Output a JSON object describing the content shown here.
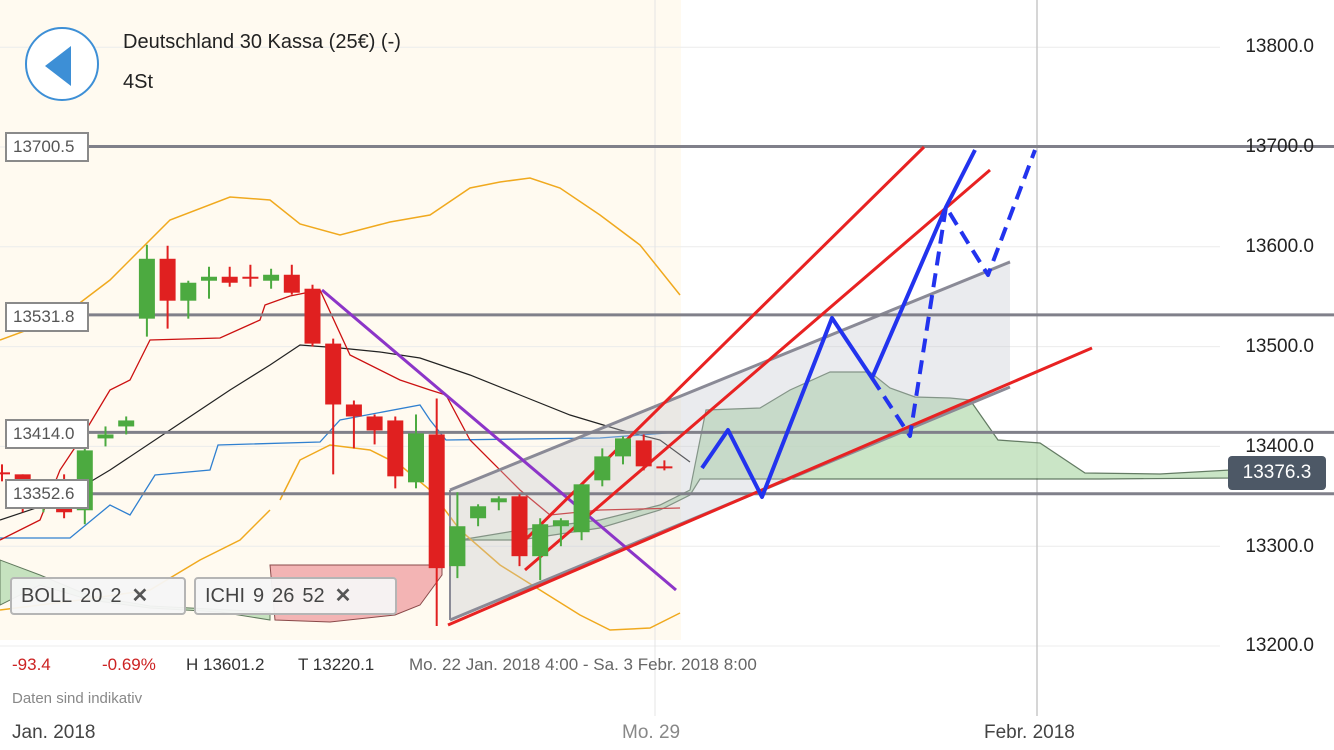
{
  "header": {
    "title": "Deutschland 30 Kassa (25€) (-)",
    "timeframe": "4St"
  },
  "icons": {
    "back": "back-arrow-icon",
    "remove": "close-icon"
  },
  "colors": {
    "bull": "#4caa40",
    "bear": "#e02020",
    "bollinger": "#f0a91e",
    "ichimoku_cloud_bull": "#b9ddb3",
    "ichimoku_cloud_bear": "#f3b4b4",
    "trend_red": "#e82222",
    "trend_purple": "#8c35c8",
    "projection_blue": "#2233ee",
    "channel_gray": "#8a8a96",
    "price_tag": "#4d5866",
    "kijun": "#cc1111",
    "tenkan": "#3080d0"
  },
  "levels": [
    "13700.5",
    "13531.8",
    "13414.0",
    "13352.6"
  ],
  "current_price": "13376.3",
  "indicators": {
    "boll": {
      "name": "BOLL",
      "p1": "20",
      "p2": "2"
    },
    "ichi": {
      "name": "ICHI",
      "p1": "9",
      "p2": "26",
      "p3": "52"
    }
  },
  "stats": {
    "change": "-93.4",
    "change_pct": "-0.69%",
    "high": "H 13601.2",
    "low": "T 13220.1",
    "range": "Mo. 22 Jan. 2018 4:00 - Sa. 3 Febr. 2018 8:00"
  },
  "note": "Daten sind indikativ",
  "x_axis": {
    "lead": "Jan. 2018",
    "mid": "Mo. 29",
    "right": "Febr. 2018"
  },
  "chart_data": {
    "type": "candlestick",
    "instrument": "Deutschland 30 Kassa (25€) (-)",
    "timeframe": "4St",
    "yticks": [
      "13800.0",
      "13700.0",
      "13600.0",
      "13500.0",
      "13400.0",
      "13300.0",
      "13200.0"
    ],
    "ylim": [
      13200,
      13800
    ],
    "xticks": [
      "Jan. 2018",
      "Mo. 29",
      "Febr. 2018"
    ],
    "horizontal_levels": [
      13700.5,
      13531.8,
      13414.0,
      13352.6
    ],
    "last_price": 13376.3,
    "high": 13601.2,
    "low": 13220.1,
    "candles": [
      {
        "o": 13374,
        "h": 13382,
        "l": 13365,
        "c": 13372
      },
      {
        "o": 13372,
        "h": 13372,
        "l": 13334,
        "c": 13342
      },
      {
        "o": 13342,
        "h": 13352,
        "l": 13334,
        "c": 13343
      },
      {
        "o": 13344,
        "h": 13372,
        "l": 13328,
        "c": 13334
      },
      {
        "o": 13336,
        "h": 13402,
        "l": 13322,
        "c": 13396
      },
      {
        "o": 13408,
        "h": 13420,
        "l": 13400,
        "c": 13412
      },
      {
        "o": 13420,
        "h": 13430,
        "l": 13412,
        "c": 13426
      },
      {
        "o": 13528,
        "h": 13602,
        "l": 13510,
        "c": 13588
      },
      {
        "o": 13588,
        "h": 13601,
        "l": 13518,
        "c": 13546
      },
      {
        "o": 13546,
        "h": 13566,
        "l": 13528,
        "c": 13564
      },
      {
        "o": 13566,
        "h": 13580,
        "l": 13548,
        "c": 13570
      },
      {
        "o": 13570,
        "h": 13580,
        "l": 13560,
        "c": 13564
      },
      {
        "o": 13570,
        "h": 13582,
        "l": 13560,
        "c": 13568
      },
      {
        "o": 13566,
        "h": 13578,
        "l": 13558,
        "c": 13572
      },
      {
        "o": 13572,
        "h": 13582,
        "l": 13552,
        "c": 13554
      },
      {
        "o": 13558,
        "h": 13562,
        "l": 13500,
        "c": 13503
      },
      {
        "o": 13503,
        "h": 13508,
        "l": 13372,
        "c": 13442
      },
      {
        "o": 13442,
        "h": 13446,
        "l": 13398,
        "c": 13430
      },
      {
        "o": 13430,
        "h": 13432,
        "l": 13402,
        "c": 13416
      },
      {
        "o": 13426,
        "h": 13430,
        "l": 13358,
        "c": 13370
      },
      {
        "o": 13364,
        "h": 13432,
        "l": 13358,
        "c": 13413
      },
      {
        "o": 13412,
        "h": 13448,
        "l": 13220,
        "c": 13278
      },
      {
        "o": 13280,
        "h": 13354,
        "l": 13268,
        "c": 13320
      },
      {
        "o": 13328,
        "h": 13342,
        "l": 13320,
        "c": 13340
      },
      {
        "o": 13344,
        "h": 13350,
        "l": 13336,
        "c": 13348
      },
      {
        "o": 13350,
        "h": 13352,
        "l": 13280,
        "c": 13290
      },
      {
        "o": 13290,
        "h": 13328,
        "l": 13266,
        "c": 13322
      },
      {
        "o": 13320,
        "h": 13328,
        "l": 13300,
        "c": 13326
      },
      {
        "o": 13314,
        "h": 13362,
        "l": 13306,
        "c": 13362
      },
      {
        "o": 13366,
        "h": 13398,
        "l": 13360,
        "c": 13390
      },
      {
        "o": 13390,
        "h": 13410,
        "l": 13382,
        "c": 13408
      },
      {
        "o": 13406,
        "h": 13412,
        "l": 13376,
        "c": 13380
      },
      {
        "o": 13380,
        "h": 13386,
        "l": 13376,
        "c": 13378
      }
    ]
  }
}
